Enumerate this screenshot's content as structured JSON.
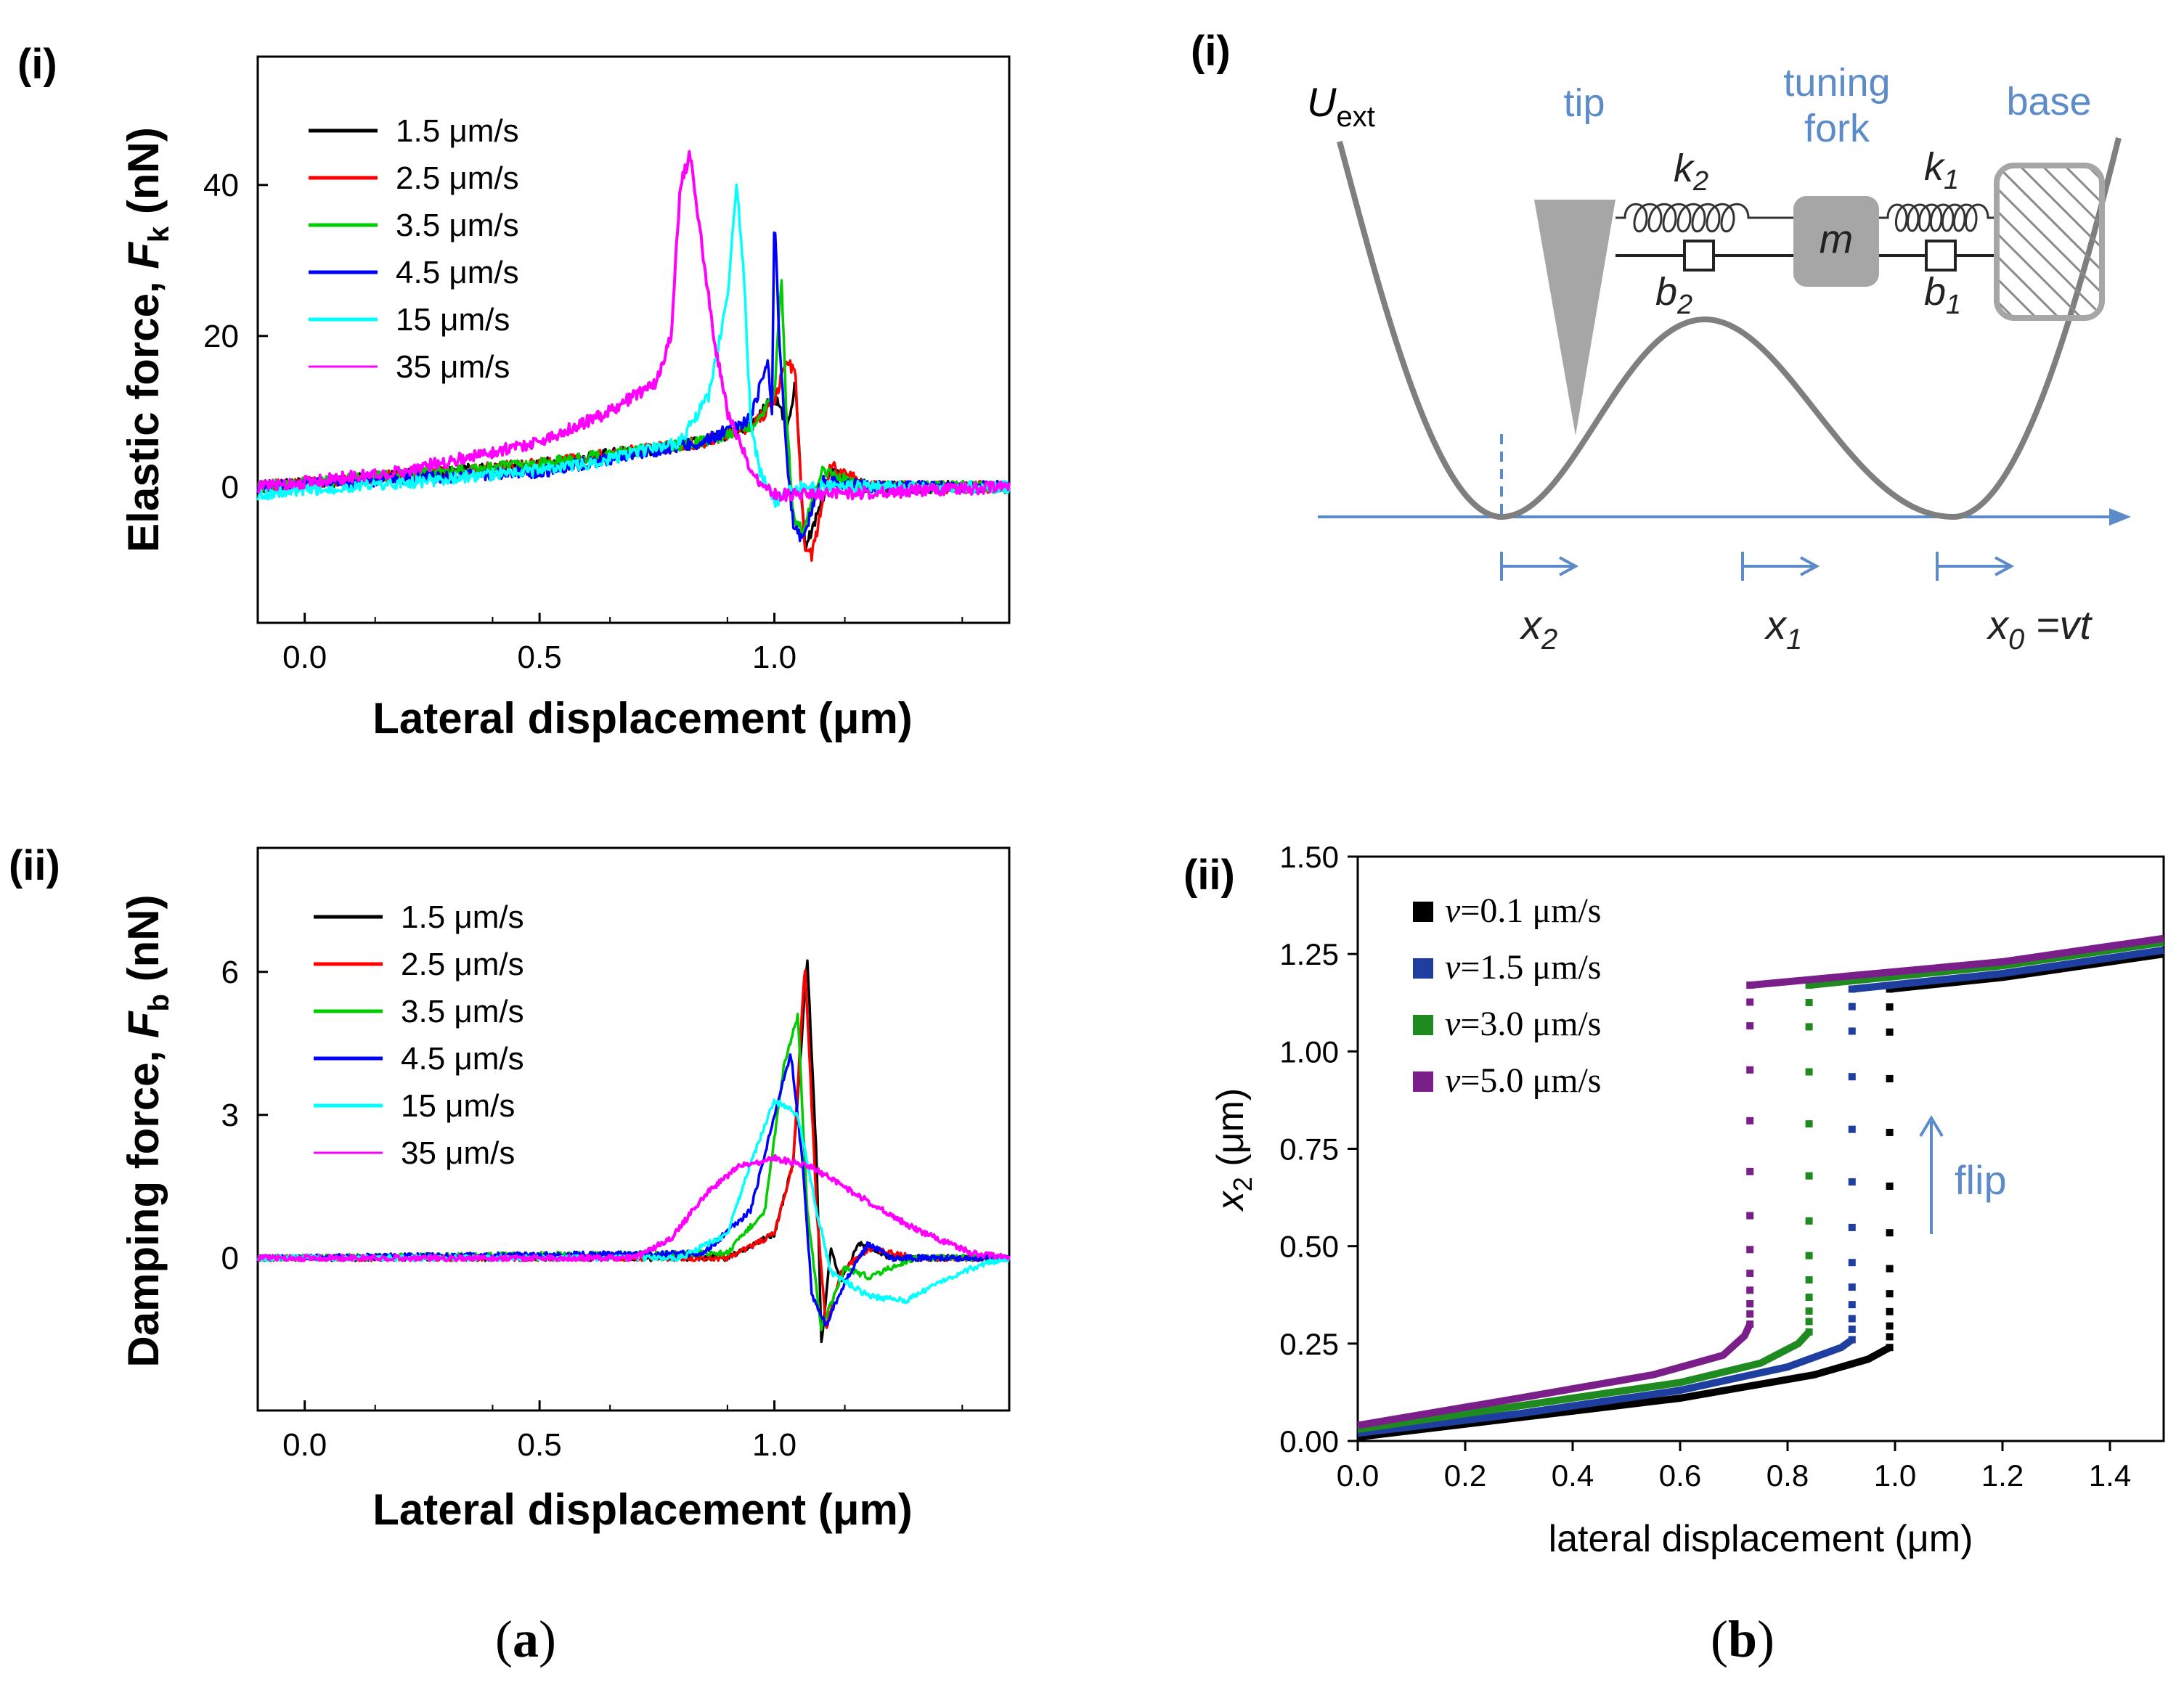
{
  "panel_a": {
    "caption_open": "(",
    "caption_letter": "a",
    "caption_close": ")",
    "top": {
      "label": "(i)",
      "ylabel_main": "Elastic force, ",
      "ylabel_var": "F",
      "ylabel_sub": "k",
      "ylabel_unit": " (nN)",
      "xlabel": "Lateral displacement (μm)"
    },
    "bottom": {
      "label": "(ii)",
      "ylabel_main": "Damping force, ",
      "ylabel_var": "F",
      "ylabel_sub": "b",
      "ylabel_unit": " (nN)",
      "xlabel": "Lateral displacement (μm)"
    }
  },
  "panel_b": {
    "caption_open": "(",
    "caption_letter": "b",
    "caption_close": ")",
    "diagram": {
      "label": "(i)",
      "u_main": "U",
      "u_sub": "ext",
      "tip": "tip",
      "tuning_fork_line1": "tuning",
      "tuning_fork_line2": "fork",
      "base": "base",
      "k2_main": "k",
      "k2_sub": "2",
      "k1_main": "k",
      "k1_sub": "1",
      "b2_main": "b",
      "b2_sub": "2",
      "b1_main": "b",
      "b1_sub": "1",
      "mass": "m",
      "x2_main": "x",
      "x2_sub": "2",
      "x1_main": "x",
      "x1_sub": "1",
      "x0_main": "x",
      "x0_sub": "0",
      "x0_rest": " =vt",
      "colors": {
        "blue": "#5b8bc9",
        "gray": "#7f7f7f",
        "lightgray": "#a6a6a6"
      }
    },
    "plot_label": "(ii)",
    "ylabel_main": "x",
    "ylabel_sub": "2",
    "ylabel_unit": " (μm)",
    "xlabel": "lateral displacement (μm)",
    "flip_label": "flip"
  },
  "chart_data": [
    {
      "id": "elastic",
      "type": "line",
      "xlabel": "Lateral displacement (μm)",
      "ylabel": "Elastic force, Fk (nN)",
      "xlim": [
        -0.1,
        1.5
      ],
      "ylim": [
        -18,
        57
      ],
      "xticks": [
        0.0,
        0.5,
        1.0
      ],
      "xtick_labels": [
        "0.0",
        "0.5",
        "1.0"
      ],
      "yticks": [
        0,
        20,
        40
      ],
      "ytick_labels": [
        "0",
        "20",
        "40"
      ],
      "legend_position": "top-left",
      "series": [
        {
          "name": "1.5 μm/s",
          "color": "#000000",
          "points": [
            [
              -0.1,
              0
            ],
            [
              0.5,
              3
            ],
            [
              0.85,
              6
            ],
            [
              0.95,
              8
            ],
            [
              1.0,
              12
            ],
            [
              1.03,
              8
            ],
            [
              1.045,
              14
            ],
            [
              1.055,
              2
            ],
            [
              1.065,
              -8
            ],
            [
              1.085,
              -5
            ],
            [
              1.12,
              2
            ],
            [
              1.2,
              0
            ],
            [
              1.5,
              0
            ]
          ]
        },
        {
          "name": "2.5 μm/s",
          "color": "#ff0000",
          "points": [
            [
              -0.1,
              0
            ],
            [
              0.5,
              3
            ],
            [
              0.85,
              6
            ],
            [
              0.95,
              8
            ],
            [
              1.0,
              11
            ],
            [
              1.025,
              17
            ],
            [
              1.045,
              15
            ],
            [
              1.055,
              2
            ],
            [
              1.065,
              -8
            ],
            [
              1.08,
              -9
            ],
            [
              1.12,
              3
            ],
            [
              1.2,
              0
            ],
            [
              1.5,
              0
            ]
          ]
        },
        {
          "name": "3.5 μm/s",
          "color": "#00cc00",
          "points": [
            [
              -0.1,
              0
            ],
            [
              0.5,
              3
            ],
            [
              0.85,
              6
            ],
            [
              0.95,
              8
            ],
            [
              1.0,
              12
            ],
            [
              1.015,
              28
            ],
            [
              1.025,
              10
            ],
            [
              1.04,
              -4
            ],
            [
              1.06,
              -6
            ],
            [
              1.1,
              2
            ],
            [
              1.2,
              0
            ],
            [
              1.5,
              0
            ]
          ]
        },
        {
          "name": "4.5 μm/s",
          "color": "#0000ff",
          "points": [
            [
              -0.1,
              0
            ],
            [
              0.5,
              2
            ],
            [
              0.85,
              6
            ],
            [
              0.95,
              9
            ],
            [
              0.985,
              17
            ],
            [
              0.995,
              10
            ],
            [
              1.0,
              37
            ],
            [
              1.01,
              20
            ],
            [
              1.025,
              5
            ],
            [
              1.04,
              -5
            ],
            [
              1.06,
              -7
            ],
            [
              1.1,
              1
            ],
            [
              1.2,
              0
            ],
            [
              1.5,
              0
            ]
          ]
        },
        {
          "name": "15 μm/s",
          "color": "#00ffff",
          "points": [
            [
              -0.1,
              -1
            ],
            [
              0.3,
              1
            ],
            [
              0.6,
              3
            ],
            [
              0.8,
              6
            ],
            [
              0.86,
              12
            ],
            [
              0.9,
              25
            ],
            [
              0.92,
              40
            ],
            [
              0.935,
              28
            ],
            [
              0.95,
              8
            ],
            [
              0.97,
              2
            ],
            [
              1.0,
              -2
            ],
            [
              1.05,
              0
            ],
            [
              1.5,
              0
            ]
          ]
        },
        {
          "name": "35 μm/s",
          "color": "#ff00ff",
          "points": [
            [
              -0.1,
              0
            ],
            [
              0.2,
              2
            ],
            [
              0.5,
              6
            ],
            [
              0.65,
              10
            ],
            [
              0.75,
              14
            ],
            [
              0.78,
              20
            ],
            [
              0.8,
              40
            ],
            [
              0.82,
              44
            ],
            [
              0.84,
              35
            ],
            [
              0.87,
              20
            ],
            [
              0.9,
              10
            ],
            [
              0.95,
              2
            ],
            [
              1.0,
              -1
            ],
            [
              1.1,
              -1
            ],
            [
              1.5,
              0
            ]
          ]
        }
      ]
    },
    {
      "id": "damping",
      "type": "line",
      "xlabel": "Lateral displacement (μm)",
      "ylabel": "Damping force, Fb (nN)",
      "xlim": [
        -0.1,
        1.5
      ],
      "ylim": [
        -3.2,
        8.6
      ],
      "xticks": [
        0.0,
        0.5,
        1.0
      ],
      "xtick_labels": [
        "0.0",
        "0.5",
        "1.0"
      ],
      "yticks": [
        0,
        3,
        6
      ],
      "ytick_labels": [
        "0",
        "3",
        "6"
      ],
      "legend_position": "top-left",
      "series": [
        {
          "name": "1.5 μm/s",
          "color": "#000000",
          "points": [
            [
              -0.1,
              0
            ],
            [
              0.9,
              0
            ],
            [
              1.0,
              0.5
            ],
            [
              1.04,
              2
            ],
            [
              1.07,
              6.3
            ],
            [
              1.09,
              2
            ],
            [
              1.1,
              -1.8
            ],
            [
              1.12,
              0.2
            ],
            [
              1.14,
              -0.5
            ],
            [
              1.18,
              0.3
            ],
            [
              1.25,
              0
            ],
            [
              1.5,
              0
            ]
          ]
        },
        {
          "name": "2.5 μm/s",
          "color": "#ff0000",
          "points": [
            [
              -0.1,
              0
            ],
            [
              0.9,
              0
            ],
            [
              1.0,
              0.5
            ],
            [
              1.04,
              2
            ],
            [
              1.065,
              6.2
            ],
            [
              1.09,
              1
            ],
            [
              1.11,
              -1.5
            ],
            [
              1.14,
              -0.3
            ],
            [
              1.2,
              0.2
            ],
            [
              1.3,
              0
            ],
            [
              1.5,
              0
            ]
          ]
        },
        {
          "name": "3.5 μm/s",
          "color": "#00cc00",
          "points": [
            [
              -0.1,
              0
            ],
            [
              0.9,
              0.1
            ],
            [
              0.98,
              1
            ],
            [
              1.02,
              4
            ],
            [
              1.05,
              5.1
            ],
            [
              1.07,
              1
            ],
            [
              1.1,
              -1.5
            ],
            [
              1.15,
              -0.2
            ],
            [
              1.2,
              -0.4
            ],
            [
              1.3,
              0
            ],
            [
              1.5,
              0
            ]
          ]
        },
        {
          "name": "4.5 μm/s",
          "color": "#0000ff",
          "points": [
            [
              -0.1,
              0
            ],
            [
              0.85,
              0.1
            ],
            [
              0.95,
              1
            ],
            [
              1.0,
              3
            ],
            [
              1.035,
              4.3
            ],
            [
              1.06,
              2
            ],
            [
              1.08,
              -0.8
            ],
            [
              1.11,
              -1.4
            ],
            [
              1.15,
              -0.5
            ],
            [
              1.2,
              0.3
            ],
            [
              1.25,
              0
            ],
            [
              1.5,
              0
            ]
          ]
        },
        {
          "name": "15 μm/s",
          "color": "#00ffff",
          "points": [
            [
              -0.1,
              0
            ],
            [
              0.8,
              0
            ],
            [
              0.9,
              0.5
            ],
            [
              0.95,
              2
            ],
            [
              1.0,
              3.3
            ],
            [
              1.05,
              3
            ],
            [
              1.09,
              1
            ],
            [
              1.12,
              -0.3
            ],
            [
              1.2,
              -0.8
            ],
            [
              1.28,
              -0.9
            ],
            [
              1.35,
              -0.5
            ],
            [
              1.45,
              -0.1
            ],
            [
              1.5,
              0
            ]
          ]
        },
        {
          "name": "35 μm/s",
          "color": "#ff00ff",
          "points": [
            [
              -0.1,
              0
            ],
            [
              0.7,
              0
            ],
            [
              0.78,
              0.4
            ],
            [
              0.85,
              1.3
            ],
            [
              0.92,
              1.9
            ],
            [
              1.0,
              2.1
            ],
            [
              1.08,
              1.9
            ],
            [
              1.18,
              1.3
            ],
            [
              1.3,
              0.6
            ],
            [
              1.42,
              0.1
            ],
            [
              1.5,
              0
            ]
          ]
        }
      ]
    },
    {
      "id": "x2",
      "type": "scatter",
      "xlabel": "lateral displacement (μm)",
      "ylabel": "x2 (μm)",
      "xlim": [
        0,
        1.5
      ],
      "ylim": [
        0,
        1.5
      ],
      "xticks": [
        0.0,
        0.2,
        0.4,
        0.6,
        0.8,
        1.0,
        1.2,
        1.4
      ],
      "xtick_labels": [
        "0.0",
        "0.2",
        "0.4",
        "0.6",
        "0.8",
        "1.0",
        "1.2",
        "1.4"
      ],
      "yticks": [
        0.0,
        0.25,
        0.5,
        0.75,
        1.0,
        1.25,
        1.5
      ],
      "ytick_labels": [
        "0.00",
        "0.25",
        "0.50",
        "0.75",
        "1.00",
        "1.25",
        "1.50"
      ],
      "legend_position": "top-left",
      "series": [
        {
          "name": "v=0.1 μm/s",
          "var": "v",
          "value_text": "=0.1 μm/s",
          "color": "#000000",
          "offset": 0.0,
          "flip_x": 0.99,
          "lower": [
            [
              0.0,
              0.01
            ],
            [
              0.3,
              0.06
            ],
            [
              0.6,
              0.11
            ],
            [
              0.85,
              0.17
            ],
            [
              0.95,
              0.21
            ],
            [
              0.99,
              0.24
            ]
          ],
          "upper": [
            [
              0.99,
              1.16
            ],
            [
              1.2,
              1.19
            ],
            [
              1.5,
              1.25
            ]
          ]
        },
        {
          "name": "v=1.5 μm/s",
          "var": "v",
          "value_text": "=1.5 μm/s",
          "color": "#1f3fa0",
          "offset": 0.0,
          "flip_x": 0.92,
          "lower": [
            [
              0.0,
              0.02
            ],
            [
              0.3,
              0.07
            ],
            [
              0.6,
              0.13
            ],
            [
              0.8,
              0.19
            ],
            [
              0.9,
              0.24
            ],
            [
              0.92,
              0.26
            ]
          ],
          "upper": [
            [
              0.92,
              1.16
            ],
            [
              1.2,
              1.2
            ],
            [
              1.5,
              1.26
            ]
          ]
        },
        {
          "name": "v=3.0 μm/s",
          "var": "v",
          "value_text": "=3.0 μm/s",
          "color": "#1f8a1f",
          "offset": 0.0,
          "flip_x": 0.84,
          "lower": [
            [
              0.0,
              0.03
            ],
            [
              0.3,
              0.09
            ],
            [
              0.6,
              0.15
            ],
            [
              0.75,
              0.2
            ],
            [
              0.82,
              0.25
            ],
            [
              0.84,
              0.28
            ]
          ],
          "upper": [
            [
              0.84,
              1.17
            ],
            [
              1.2,
              1.22
            ],
            [
              1.5,
              1.28
            ]
          ]
        },
        {
          "name": "v=5.0 μm/s",
          "var": "v",
          "value_text": "=5.0 μm/s",
          "color": "#7a1f8a",
          "offset": 0.0,
          "flip_x": 0.73,
          "lower": [
            [
              0.0,
              0.04
            ],
            [
              0.3,
              0.11
            ],
            [
              0.55,
              0.17
            ],
            [
              0.68,
              0.22
            ],
            [
              0.72,
              0.27
            ],
            [
              0.73,
              0.3
            ]
          ],
          "upper": [
            [
              0.73,
              1.17
            ],
            [
              1.2,
              1.23
            ],
            [
              1.5,
              1.29
            ]
          ]
        }
      ]
    }
  ]
}
